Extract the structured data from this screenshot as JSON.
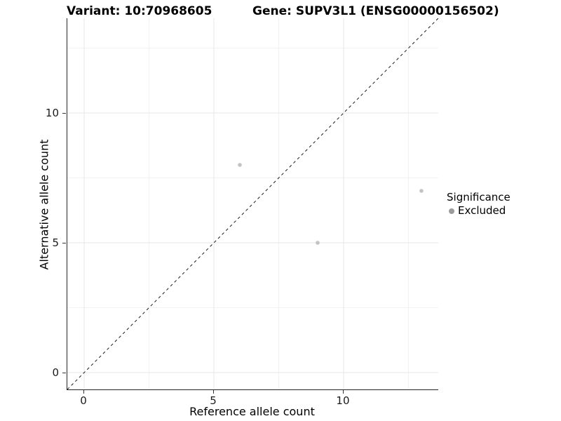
{
  "header": {
    "variant_title": "Variant: 10:70968605",
    "gene_title": "Gene: SUPV3L1 (ENSG00000156502)"
  },
  "chart_data": {
    "type": "scatter",
    "title": "Variant: 10:70968605 — Gene: SUPV3L1 (ENSG00000156502)",
    "xlabel": "Reference allele count",
    "ylabel": "Alternative allele count",
    "xlim": [
      -0.65,
      13.65
    ],
    "ylim": [
      -0.65,
      13.65
    ],
    "x_major_ticks": [
      0,
      5,
      10
    ],
    "y_major_ticks": [
      0,
      5,
      10
    ],
    "x_minor_ticks": [
      2.5,
      7.5,
      12.5
    ],
    "y_minor_ticks": [
      2.5,
      7.5,
      12.5
    ],
    "grid": true,
    "identity_line": {
      "equation": "y = x",
      "style": "dashed",
      "color": "#1a1a1a"
    },
    "series": [
      {
        "name": "Excluded",
        "marker": "circle",
        "color": "#c3c3c3",
        "points": [
          {
            "x": 6,
            "y": 8
          },
          {
            "x": 9,
            "y": 5
          },
          {
            "x": 13,
            "y": 7
          }
        ]
      }
    ],
    "legend": {
      "title": "Significance",
      "position": "right",
      "entries": [
        {
          "label": "Excluded",
          "swatch_color": "#9b9b9b"
        }
      ]
    }
  },
  "colors": {
    "grid_major": "#e7e7e7",
    "grid_minor": "#f2f2f2",
    "axis_line": "#262626",
    "tick": "#333333",
    "tick_label": "#1a1a1a",
    "point": "#c3c3c3",
    "legend_swatch": "#9b9b9b"
  }
}
